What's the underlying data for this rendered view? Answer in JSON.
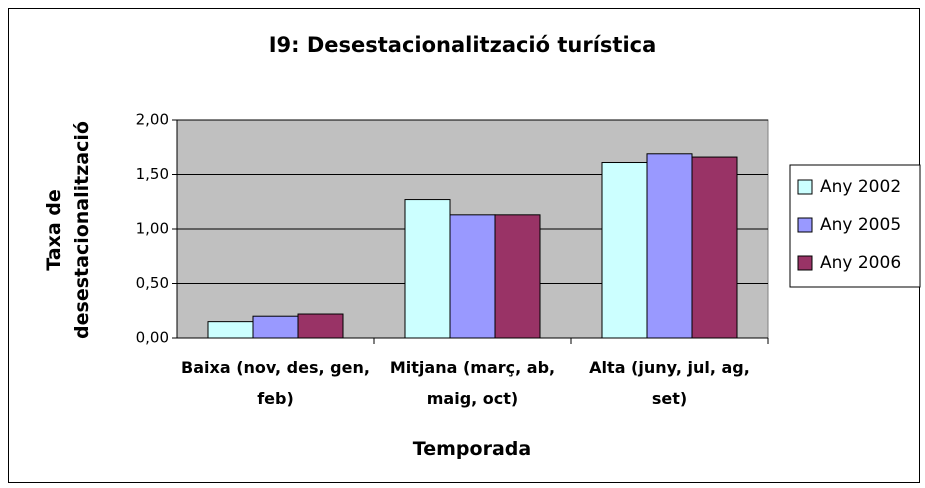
{
  "chart_data": {
    "type": "bar",
    "title": "I9: Desestacionalització turística",
    "xlabel": "Temporada",
    "ylabel": "Taxa de desestacionalització",
    "categories": [
      "Baixa (nov, des, gen, feb)",
      "Mitjana (març, ab, maig, oct)",
      "Alta (juny, jul, ag, set)"
    ],
    "series": [
      {
        "name": "Any 2002",
        "color": "#ccffff",
        "values": [
          0.15,
          1.27,
          1.61
        ]
      },
      {
        "name": "Any 2005",
        "color": "#9999ff",
        "values": [
          0.2,
          1.13,
          1.69
        ]
      },
      {
        "name": "Any 2006",
        "color": "#993366",
        "values": [
          0.22,
          1.13,
          1.66
        ]
      }
    ],
    "ylim": [
      0,
      2
    ],
    "yticks": [
      {
        "value": 0,
        "label": "0,00"
      },
      {
        "value": 0.5,
        "label": "0,50"
      },
      {
        "value": 1,
        "label": "1,00"
      },
      {
        "value": 1.5,
        "label": "1,50"
      },
      {
        "value": 2,
        "label": "2,00"
      }
    ],
    "grid": true,
    "plot_background": "#c0c0c0",
    "legend": "right"
  }
}
